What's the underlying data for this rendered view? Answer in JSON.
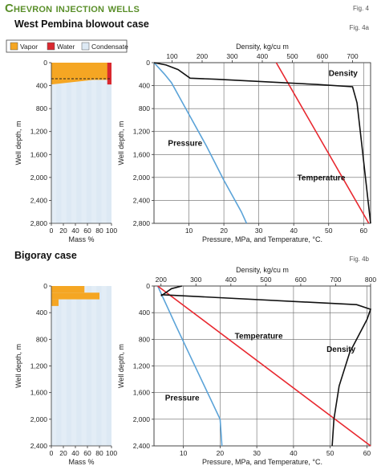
{
  "header": {
    "title": "Chevron injection wells",
    "fig_label": "Fig. 4"
  },
  "panel_a": {
    "title": "West Pembina blowout case",
    "fig_label": "Fig. 4a"
  },
  "panel_b": {
    "title": "Bigoray case",
    "fig_label": "Fig. 4b"
  },
  "legend": {
    "items": [
      {
        "label": "Vapor",
        "color": "#f5a623"
      },
      {
        "label": "Water",
        "color": "#d9282f"
      },
      {
        "label": "Condensate",
        "color": "#dde9f4"
      }
    ]
  },
  "colors": {
    "pressure": "#5ba3d8",
    "temperature": "#e8282f",
    "density": "#111111",
    "grid": "#666666"
  },
  "chart_data": [
    {
      "id": "a_mass",
      "type": "area",
      "xlabel": "Mass %",
      "ylabel": "Well depth, m",
      "xlim": [
        0,
        100
      ],
      "ylim": [
        0,
        2800
      ],
      "xticks": [
        0,
        20,
        40,
        60,
        80,
        100
      ],
      "yticks": [
        0,
        400,
        800,
        1200,
        1600,
        2000,
        2400,
        2800
      ],
      "series": [
        {
          "name": "Vapor",
          "depth_m": [
            0,
            380
          ],
          "mass_pct_right": [
            {
              "depth": 0,
              "value": 100
            },
            {
              "depth": 80,
              "value": 95
            },
            {
              "depth": 160,
              "value": 88
            },
            {
              "depth": 230,
              "value": 80
            },
            {
              "depth": 300,
              "value": 70
            },
            {
              "depth": 380,
              "value": 0
            }
          ]
        },
        {
          "name": "Water",
          "depth_m": [
            0,
            380
          ],
          "band_pct": [
            93,
            100
          ]
        },
        {
          "name": "Condensate",
          "depth_m": [
            0,
            2800
          ]
        }
      ],
      "dashed_level_depth_m": 280
    },
    {
      "id": "a_main",
      "type": "line",
      "title": "",
      "xlabel": "Pressure, MPa, and Temperature, °C.",
      "ylabel": "Well depth, m",
      "x2label": "Density, kg/cu m",
      "xlim": [
        0,
        62
      ],
      "x2lim": [
        40,
        760
      ],
      "ylim": [
        0,
        2800
      ],
      "xticks": [
        10,
        20,
        30,
        40,
        50,
        60
      ],
      "x2ticks": [
        100,
        200,
        300,
        400,
        500,
        600,
        700
      ],
      "yticks": [
        0,
        400,
        800,
        1200,
        1600,
        2000,
        2400,
        2800
      ],
      "series": [
        {
          "name": "Pressure",
          "label_at": {
            "depth": 1450,
            "x": 4
          },
          "points": [
            {
              "x": 0,
              "depth": 0
            },
            {
              "x": 3,
              "depth": 200
            },
            {
              "x": 5,
              "depth": 350
            },
            {
              "x": 10,
              "depth": 900
            },
            {
              "x": 15,
              "depth": 1450
            },
            {
              "x": 20,
              "depth": 2050
            },
            {
              "x": 25,
              "depth": 2600
            },
            {
              "x": 26.5,
              "depth": 2800
            }
          ]
        },
        {
          "name": "Temperature",
          "label_at": {
            "depth": 2050,
            "x": 41
          },
          "points": [
            {
              "x": 35,
              "depth": 0
            },
            {
              "x": 61.5,
              "depth": 2800
            }
          ]
        },
        {
          "name": "Density",
          "axis": "x2",
          "label_at": {
            "depth": 230,
            "x": 50
          },
          "points": [
            {
              "x": 40,
              "depth": 0
            },
            {
              "x": 80,
              "depth": 40
            },
            {
              "x": 120,
              "depth": 120
            },
            {
              "x": 160,
              "depth": 270
            },
            {
              "x": 250,
              "depth": 290
            },
            {
              "x": 580,
              "depth": 380
            },
            {
              "x": 700,
              "depth": 420
            },
            {
              "x": 715,
              "depth": 700
            },
            {
              "x": 730,
              "depth": 1400
            },
            {
              "x": 745,
              "depth": 2100
            },
            {
              "x": 760,
              "depth": 2800
            }
          ]
        }
      ]
    },
    {
      "id": "b_mass",
      "type": "area",
      "xlabel": "Mass %",
      "ylabel": "Well depth, m",
      "xlim": [
        0,
        100
      ],
      "ylim": [
        0,
        2400
      ],
      "xticks": [
        0,
        20,
        40,
        60,
        80,
        100
      ],
      "yticks": [
        0,
        400,
        800,
        1200,
        1600,
        2000,
        2400
      ],
      "series": [
        {
          "name": "Vapor",
          "depth_m": [
            0,
            300
          ],
          "segments": [
            {
              "depth": [
                0,
                100
              ],
              "pct": [
                0,
                55
              ]
            },
            {
              "depth": [
                100,
                200
              ],
              "pct": [
                0,
                80
              ]
            },
            {
              "depth": [
                200,
                300
              ],
              "pct": [
                0,
                12
              ]
            }
          ]
        },
        {
          "name": "Condensate",
          "depth_m": [
            0,
            2400
          ]
        }
      ]
    },
    {
      "id": "b_main",
      "type": "line",
      "title": "",
      "xlabel": "Pressure, MPa, and Temperature, °C.",
      "ylabel": "Well depth, m",
      "x2label": "Density, kg/cu m",
      "xlim": [
        2,
        61
      ],
      "x2lim": [
        180,
        800
      ],
      "ylim": [
        0,
        2400
      ],
      "xticks": [
        10,
        20,
        30,
        40,
        50,
        60
      ],
      "x2ticks": [
        200,
        300,
        400,
        500,
        600,
        700,
        800
      ],
      "yticks": [
        0,
        400,
        800,
        1200,
        1600,
        2000,
        2400
      ],
      "series": [
        {
          "name": "Pressure",
          "label_at": {
            "depth": 1720,
            "x": 5
          },
          "points": [
            {
              "x": 3,
              "depth": 0
            },
            {
              "x": 8,
              "depth": 600
            },
            {
              "x": 14,
              "depth": 1300
            },
            {
              "x": 20,
              "depth": 2000
            },
            {
              "x": 20.5,
              "depth": 2400
            }
          ]
        },
        {
          "name": "Temperature",
          "label_at": {
            "depth": 790,
            "x": 24
          },
          "points": [
            {
              "x": 3,
              "depth": 0
            },
            {
              "x": 61,
              "depth": 2400
            }
          ]
        },
        {
          "name": "Density",
          "axis": "x2",
          "label_at": {
            "depth": 990,
            "x": 49
          },
          "points": [
            {
              "x": 200,
              "depth": 150
            },
            {
              "x": 230,
              "depth": 40
            },
            {
              "x": 260,
              "depth": 0
            }
          ],
          "points2": [
            {
              "x": 200,
              "depth": 130
            },
            {
              "x": 760,
              "depth": 280
            },
            {
              "x": 800,
              "depth": 350
            },
            {
              "x": 790,
              "depth": 500
            },
            {
              "x": 740,
              "depth": 1000
            },
            {
              "x": 710,
              "depth": 1500
            },
            {
              "x": 695,
              "depth": 2000
            },
            {
              "x": 690,
              "depth": 2400
            }
          ]
        }
      ]
    }
  ]
}
